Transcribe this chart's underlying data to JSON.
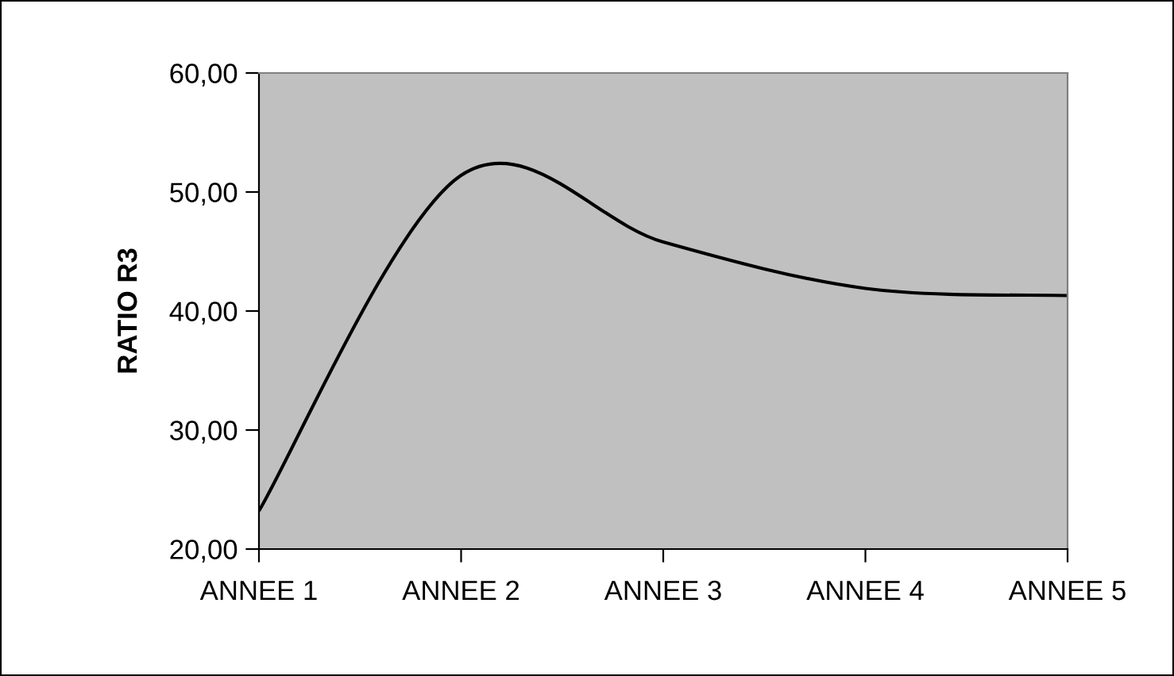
{
  "chart_data": {
    "type": "line",
    "ylabel": "RATIO R3",
    "categories": [
      "ANNEE 1",
      "ANNEE 2",
      "ANNEE 3",
      "ANNEE 4",
      "ANNEE 5"
    ],
    "series": [
      {
        "color": "#000000",
        "values": [
          23.2,
          51.4,
          45.8,
          41.9,
          41.3
        ]
      }
    ],
    "ylim": [
      20,
      60
    ],
    "yticks": [
      {
        "value": 20,
        "label": "20,00"
      },
      {
        "value": 30,
        "label": "30,00"
      },
      {
        "value": 40,
        "label": "40,00"
      },
      {
        "value": 50,
        "label": "50,00"
      },
      {
        "value": 60,
        "label": "60,00"
      }
    ],
    "grid": false,
    "marker": "none",
    "line_style": "solid"
  }
}
